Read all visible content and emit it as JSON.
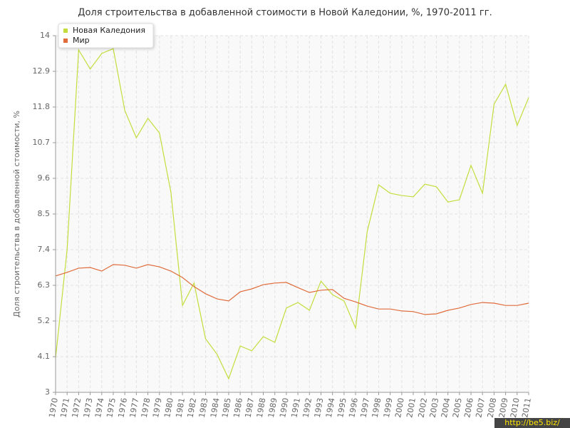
{
  "chart_data": {
    "type": "line",
    "title": "Доля строительства в добавленной стоимости в Новой Каледонии, %, 1970-2011 гг.",
    "y_label": "Доля строительства в добавленной стоимости, %",
    "categories": [
      "1970",
      "1971",
      "1972",
      "1973",
      "1974",
      "1975",
      "1976",
      "1977",
      "1978",
      "1979",
      "1980",
      "1981",
      "1982",
      "1983",
      "1984",
      "1985",
      "1986",
      "1987",
      "1988",
      "1989",
      "1990",
      "1991",
      "1992",
      "1993",
      "1994",
      "1995",
      "1996",
      "1997",
      "1998",
      "1999",
      "2000",
      "2001",
      "2002",
      "2003",
      "2004",
      "2005",
      "2006",
      "2007",
      "2008",
      "2009",
      "2010",
      "2011"
    ],
    "series": [
      {
        "name": "Новая Каледония",
        "color": "#c4dd3c",
        "values": [
          4.06,
          7.4,
          13.56,
          12.97,
          13.45,
          13.6,
          11.69,
          10.85,
          11.45,
          11.0,
          9.16,
          5.68,
          6.37,
          4.65,
          4.17,
          3.42,
          4.43,
          4.28,
          4.72,
          4.54,
          5.6,
          5.77,
          5.53,
          6.43,
          6.01,
          5.82,
          4.98,
          7.95,
          9.4,
          9.14,
          9.07,
          9.03,
          9.42,
          9.34,
          8.87,
          8.94,
          10.0,
          9.14,
          11.89,
          12.5,
          11.23,
          12.09
        ]
      },
      {
        "name": "Мир",
        "color": "#e06c3c",
        "values": [
          6.59,
          6.7,
          6.83,
          6.85,
          6.74,
          6.94,
          6.92,
          6.83,
          6.94,
          6.87,
          6.74,
          6.54,
          6.26,
          6.04,
          5.88,
          5.82,
          6.1,
          6.19,
          6.32,
          6.37,
          6.39,
          6.23,
          6.08,
          6.15,
          6.17,
          5.9,
          5.79,
          5.66,
          5.57,
          5.57,
          5.51,
          5.49,
          5.4,
          5.42,
          5.53,
          5.6,
          5.71,
          5.77,
          5.75,
          5.68,
          5.68,
          5.75
        ]
      }
    ],
    "ylim": [
      3,
      14
    ],
    "yticks": [
      3,
      4.1,
      5.2,
      6.3,
      7.4,
      8.5,
      9.6,
      10.7,
      11.8,
      12.9,
      14
    ],
    "grid": true,
    "legend": "top-left",
    "watermark": "http://be5.biz/"
  }
}
